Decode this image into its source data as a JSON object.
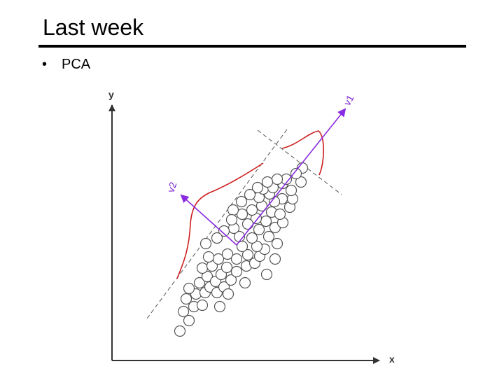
{
  "slide": {
    "title": "Last week",
    "bullet_symbol": "•",
    "bullet_text": "PCA"
  },
  "figure": {
    "x_axis_label": "x",
    "y_axis_label": "y",
    "v1_label": "v1",
    "v2_label": "v2",
    "colors": {
      "axis": "#333333",
      "vector": "#8a2be2",
      "density_curve": "#cc1e1e",
      "guide_line": "#555555",
      "point_fill": "#ffffff",
      "point_stroke": "#555555"
    }
  }
}
